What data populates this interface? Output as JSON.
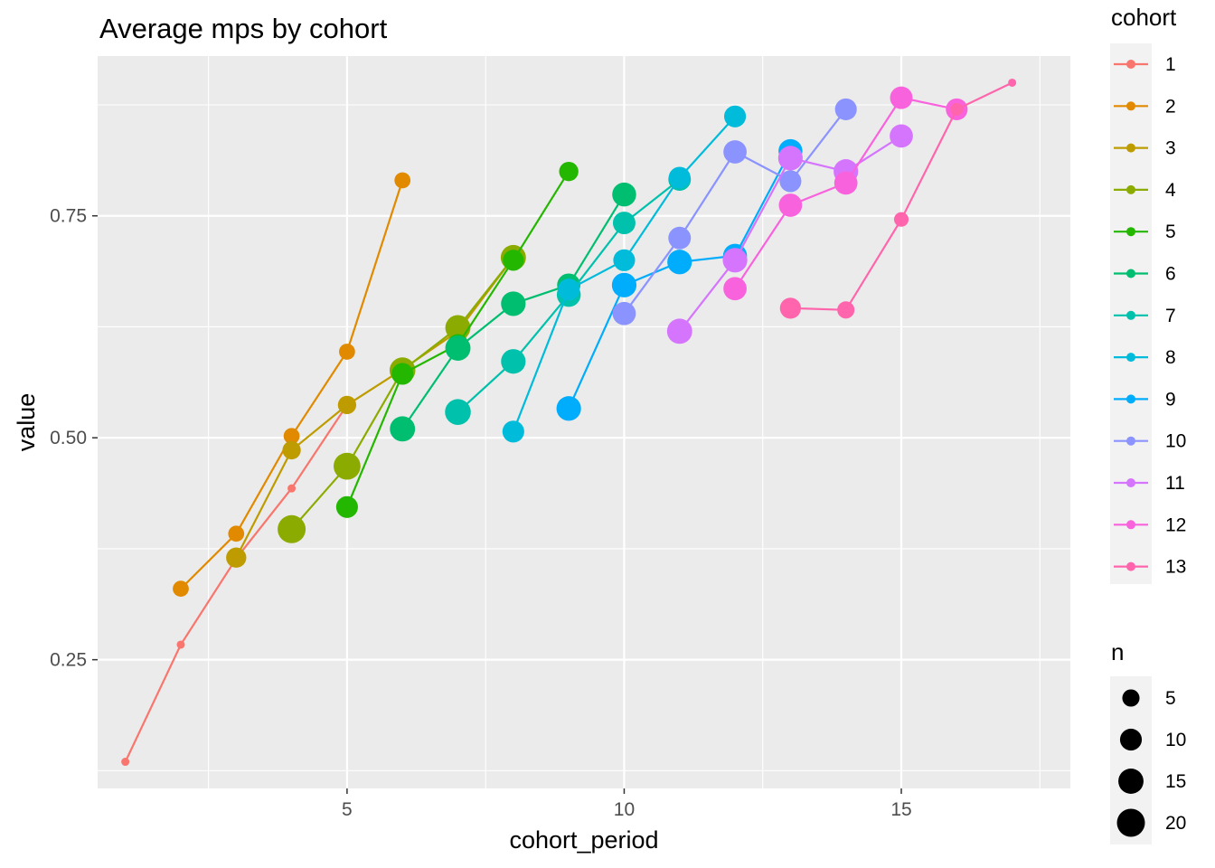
{
  "chart_data": {
    "type": "scatter",
    "title": "Average mps by cohort",
    "xlabel": "cohort_period",
    "ylabel": "value",
    "xlim": [
      0.5,
      18.05
    ],
    "ylim": [
      0.105,
      0.93
    ],
    "x_ticks": [
      5,
      10,
      15
    ],
    "y_ticks": [
      0.25,
      0.5,
      0.75
    ],
    "x_tick_labels": [
      "5",
      "10",
      "15"
    ],
    "y_tick_labels": [
      "0.25",
      "0.50",
      "0.75"
    ],
    "grid": true,
    "legend_position": "right",
    "color_legend": {
      "title": "cohort",
      "entries": [
        "1",
        "2",
        "3",
        "4",
        "5",
        "6",
        "7",
        "8",
        "9",
        "10",
        "11",
        "12",
        "13"
      ]
    },
    "size_legend": {
      "title": "n",
      "entries": [
        {
          "label": "5",
          "value": 5
        },
        {
          "label": "10",
          "value": 10
        },
        {
          "label": "15",
          "value": 15
        },
        {
          "label": "20",
          "value": 20
        }
      ]
    },
    "series": [
      {
        "name": "1",
        "color": "#F8766D",
        "points": [
          {
            "x": 1,
            "y": 0.135,
            "n": 1
          },
          {
            "x": 2,
            "y": 0.267,
            "n": 1
          },
          {
            "x": 3,
            "y": 0.364,
            "n": 1
          },
          {
            "x": 4,
            "y": 0.443,
            "n": 1
          },
          {
            "x": 5,
            "y": 0.537,
            "n": 1
          }
        ]
      },
      {
        "name": "2",
        "color": "#E18A00",
        "points": [
          {
            "x": 2,
            "y": 0.33,
            "n": 4
          },
          {
            "x": 3,
            "y": 0.392,
            "n": 4
          },
          {
            "x": 4,
            "y": 0.502,
            "n": 4
          },
          {
            "x": 5,
            "y": 0.597,
            "n": 4
          },
          {
            "x": 6,
            "y": 0.79,
            "n": 4
          }
        ]
      },
      {
        "name": "3",
        "color": "#BE9C00",
        "points": [
          {
            "x": 3,
            "y": 0.365,
            "n": 8
          },
          {
            "x": 4,
            "y": 0.486,
            "n": 6
          },
          {
            "x": 5,
            "y": 0.537,
            "n": 6
          },
          {
            "x": 6,
            "y": 0.577,
            "n": 12
          },
          {
            "x": 7,
            "y": 0.62,
            "n": 9
          },
          {
            "x": 8,
            "y": 0.703,
            "n": 14
          }
        ]
      },
      {
        "name": "4",
        "color": "#8CAB00",
        "points": [
          {
            "x": 4,
            "y": 0.397,
            "n": 20
          },
          {
            "x": 5,
            "y": 0.468,
            "n": 18
          },
          {
            "x": 6,
            "y": 0.576,
            "n": 16
          },
          {
            "x": 7,
            "y": 0.624,
            "n": 15
          },
          {
            "x": 8,
            "y": 0.703,
            "n": 15
          }
        ]
      },
      {
        "name": "5",
        "color": "#24B700",
        "points": [
          {
            "x": 5,
            "y": 0.422,
            "n": 10
          },
          {
            "x": 6,
            "y": 0.572,
            "n": 10
          },
          {
            "x": 7,
            "y": 0.605,
            "n": 9
          },
          {
            "x": 8,
            "y": 0.7,
            "n": 9
          },
          {
            "x": 9,
            "y": 0.8,
            "n": 7
          }
        ]
      },
      {
        "name": "6",
        "color": "#00BE70",
        "points": [
          {
            "x": 6,
            "y": 0.51,
            "n": 15
          },
          {
            "x": 7,
            "y": 0.601,
            "n": 15
          },
          {
            "x": 8,
            "y": 0.651,
            "n": 14
          },
          {
            "x": 9,
            "y": 0.672,
            "n": 12
          },
          {
            "x": 10,
            "y": 0.774,
            "n": 13
          }
        ]
      },
      {
        "name": "7",
        "color": "#00C1AB",
        "points": [
          {
            "x": 7,
            "y": 0.529,
            "n": 16
          },
          {
            "x": 8,
            "y": 0.586,
            "n": 14
          },
          {
            "x": 9,
            "y": 0.661,
            "n": 13
          },
          {
            "x": 10,
            "y": 0.742,
            "n": 11
          },
          {
            "x": 11,
            "y": 0.791,
            "n": 11
          }
        ]
      },
      {
        "name": "8",
        "color": "#00BBDA",
        "points": [
          {
            "x": 8,
            "y": 0.507,
            "n": 10
          },
          {
            "x": 9,
            "y": 0.667,
            "n": 10
          },
          {
            "x": 10,
            "y": 0.7,
            "n": 10
          },
          {
            "x": 11,
            "y": 0.793,
            "n": 10
          },
          {
            "x": 12,
            "y": 0.862,
            "n": 10
          }
        ]
      },
      {
        "name": "9",
        "color": "#00ACFC",
        "points": [
          {
            "x": 9,
            "y": 0.533,
            "n": 14
          },
          {
            "x": 10,
            "y": 0.672,
            "n": 14
          },
          {
            "x": 11,
            "y": 0.698,
            "n": 14
          },
          {
            "x": 12,
            "y": 0.705,
            "n": 13
          },
          {
            "x": 13,
            "y": 0.823,
            "n": 13
          }
        ]
      },
      {
        "name": "10",
        "color": "#8B93FF",
        "points": [
          {
            "x": 10,
            "y": 0.64,
            "n": 12
          },
          {
            "x": 11,
            "y": 0.725,
            "n": 11
          },
          {
            "x": 12,
            "y": 0.822,
            "n": 12
          },
          {
            "x": 13,
            "y": 0.789,
            "n": 10
          },
          {
            "x": 14,
            "y": 0.87,
            "n": 10
          }
        ]
      },
      {
        "name": "11",
        "color": "#D575FE",
        "points": [
          {
            "x": 11,
            "y": 0.62,
            "n": 15
          },
          {
            "x": 12,
            "y": 0.7,
            "n": 14
          },
          {
            "x": 13,
            "y": 0.815,
            "n": 14
          },
          {
            "x": 14,
            "y": 0.8,
            "n": 14
          },
          {
            "x": 15,
            "y": 0.84,
            "n": 12
          }
        ]
      },
      {
        "name": "12",
        "color": "#F962DD",
        "points": [
          {
            "x": 12,
            "y": 0.668,
            "n": 12
          },
          {
            "x": 13,
            "y": 0.762,
            "n": 12
          },
          {
            "x": 14,
            "y": 0.787,
            "n": 12
          },
          {
            "x": 15,
            "y": 0.883,
            "n": 11
          },
          {
            "x": 16,
            "y": 0.87,
            "n": 10
          }
        ]
      },
      {
        "name": "13",
        "color": "#FF65AC",
        "points": [
          {
            "x": 13,
            "y": 0.646,
            "n": 9
          },
          {
            "x": 14,
            "y": 0.644,
            "n": 5
          },
          {
            "x": 15,
            "y": 0.746,
            "n": 3
          },
          {
            "x": 16,
            "y": 0.87,
            "n": 2
          },
          {
            "x": 17,
            "y": 0.9,
            "n": 1
          }
        ]
      }
    ]
  }
}
